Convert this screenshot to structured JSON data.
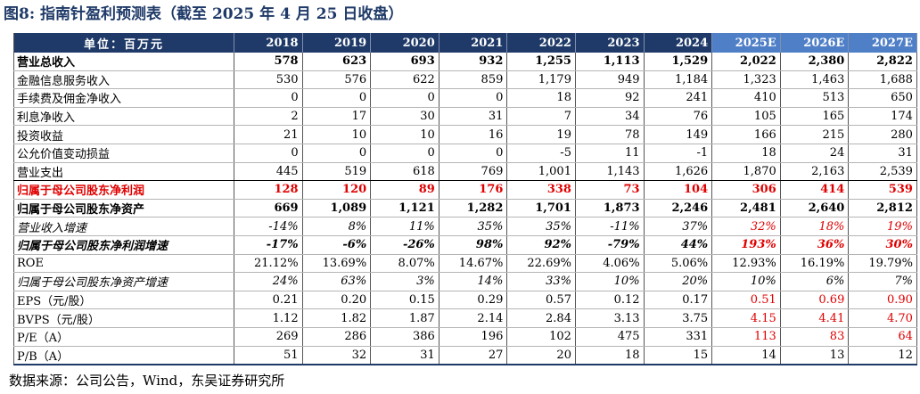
{
  "title": "图8:  指南针盈利预测表（截至 2025 年 4 月 25 日收盘）",
  "header": {
    "label": "单位：百万元",
    "years": [
      "2018",
      "2019",
      "2020",
      "2021",
      "2022",
      "2023",
      "2024",
      "2025E",
      "2026E",
      "2027E"
    ]
  },
  "rows": [
    {
      "label": "营业总收入",
      "values": [
        "578",
        "623",
        "693",
        "932",
        "1,255",
        "1,113",
        "1,529",
        "2,022",
        "2,380",
        "2,822"
      ]
    },
    {
      "label": "金融信息服务收入",
      "values": [
        "530",
        "576",
        "622",
        "859",
        "1,179",
        "949",
        "1,184",
        "1,323",
        "1,463",
        "1,688"
      ]
    },
    {
      "label": "手续费及佣金净收入",
      "values": [
        "0",
        "0",
        "0",
        "0",
        "18",
        "92",
        "241",
        "410",
        "513",
        "650"
      ]
    },
    {
      "label": "利息净收入",
      "values": [
        "2",
        "17",
        "30",
        "31",
        "7",
        "34",
        "76",
        "105",
        "165",
        "174"
      ]
    },
    {
      "label": "投资收益",
      "values": [
        "21",
        "10",
        "10",
        "16",
        "19",
        "78",
        "149",
        "166",
        "215",
        "280"
      ]
    },
    {
      "label": "公允价值变动损益",
      "values": [
        "0",
        "0",
        "0",
        "0",
        "-5",
        "11",
        "-1",
        "18",
        "24",
        "31"
      ]
    },
    {
      "label": "营业支出",
      "values": [
        "445",
        "519",
        "618",
        "769",
        "1,001",
        "1,143",
        "1,626",
        "1,870",
        "2,163",
        "2,539"
      ]
    },
    {
      "label": "归属于母公司股东净利润",
      "values": [
        "128",
        "120",
        "89",
        "176",
        "338",
        "73",
        "104",
        "306",
        "414",
        "539"
      ]
    },
    {
      "label": "归属于母公司股东净资产",
      "values": [
        "669",
        "1,089",
        "1,121",
        "1,282",
        "1,701",
        "1,873",
        "2,246",
        "2,481",
        "2,640",
        "2,812"
      ]
    },
    {
      "label": "营业收入增速",
      "values": [
        "-14%",
        "8%",
        "11%",
        "35%",
        "35%",
        "-11%",
        "37%",
        "32%",
        "18%",
        "19%"
      ]
    },
    {
      "label": "归属于母公司股东净利润增速",
      "values": [
        "-17%",
        "-6%",
        "-26%",
        "98%",
        "92%",
        "-79%",
        "44%",
        "193%",
        "36%",
        "30%"
      ]
    },
    {
      "label": "ROE",
      "values": [
        "21.12%",
        "13.69%",
        "8.07%",
        "14.67%",
        "22.69%",
        "4.06%",
        "5.06%",
        "12.93%",
        "16.19%",
        "19.79%"
      ]
    },
    {
      "label": "归属于母公司股东净资产增速",
      "values": [
        "24%",
        "63%",
        "3%",
        "14%",
        "33%",
        "10%",
        "20%",
        "10%",
        "6%",
        "7%"
      ]
    },
    {
      "label": "EPS（元/股）",
      "values": [
        "0.21",
        "0.20",
        "0.15",
        "0.29",
        "0.57",
        "0.12",
        "0.17",
        "0.51",
        "0.69",
        "0.90"
      ]
    },
    {
      "label": "BVPS（元/股）",
      "values": [
        "1.12",
        "1.82",
        "1.87",
        "2.14",
        "2.84",
        "3.13",
        "3.75",
        "4.15",
        "4.41",
        "4.70"
      ]
    },
    {
      "label": "P/E（A）",
      "values": [
        "269",
        "286",
        "386",
        "196",
        "102",
        "475",
        "331",
        "113",
        "83",
        "64"
      ]
    },
    {
      "label": "P/B（A）",
      "values": [
        "51",
        "32",
        "31",
        "27",
        "20",
        "18",
        "15",
        "14",
        "13",
        "12"
      ]
    }
  ],
  "source": "数据来源：公司公告，Wind，东吴证券研究所",
  "colors": {
    "header_bg": "#1f3a68",
    "estimate_bg": "#4f7fc7",
    "highlight": "#e00000"
  }
}
